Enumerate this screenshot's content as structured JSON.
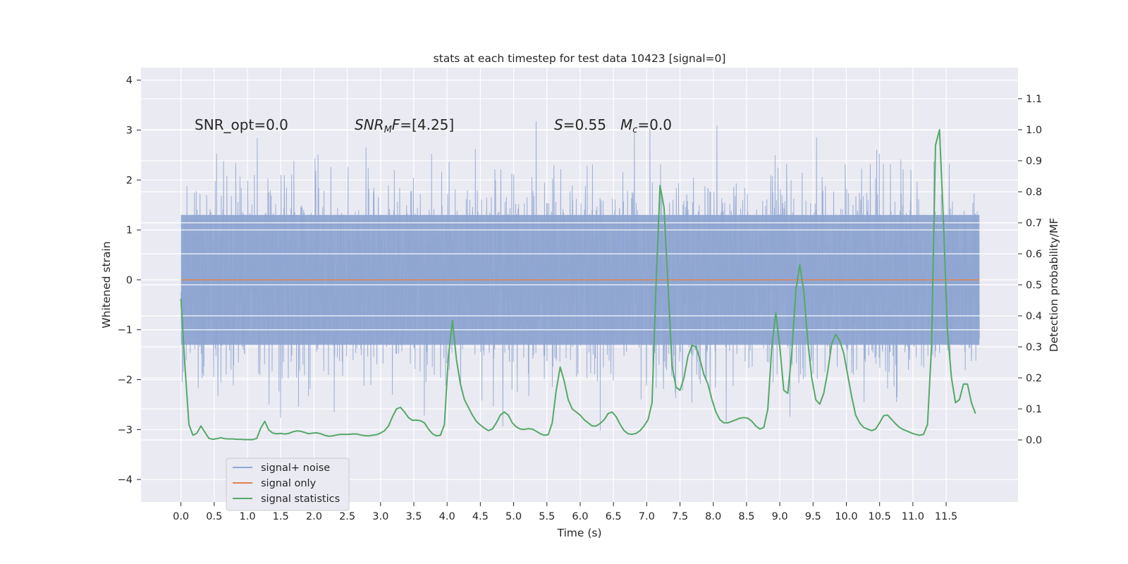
{
  "chart_data": {
    "type": "line",
    "title": "stats at each timestep for test data 10423 [signal=0]",
    "xlabel": "Time (s)",
    "ylabel_left": "Whitened strain",
    "ylabel_right": "Detection probability/MF",
    "xlim": [
      -0.6,
      12.58
    ],
    "ylim_left": [
      -4.45,
      4.25
    ],
    "ylim_right": [
      -0.2,
      1.2
    ],
    "x_ticks": [
      "0.0",
      "0.5",
      "1.0",
      "1.5",
      "2.0",
      "2.5",
      "3.0",
      "3.5",
      "4.0",
      "4.5",
      "5.0",
      "5.5",
      "6.0",
      "6.5",
      "7.0",
      "7.5",
      "8.0",
      "8.5",
      "9.0",
      "9.5",
      "10.0",
      "10.5",
      "11.0",
      "11.5"
    ],
    "y_ticks_left": [
      "4",
      "3",
      "2",
      "1",
      "0",
      "−1",
      "−2",
      "−3",
      "−4"
    ],
    "y_ticks_right": [
      "1.1",
      "1.0",
      "0.9",
      "0.8",
      "0.7",
      "0.6",
      "0.5",
      "0.4",
      "0.3",
      "0.2",
      "0.1",
      "0.0"
    ],
    "grid": true,
    "legend_position": "lower-left",
    "colors": {
      "noise": "#8fa6d1",
      "signal_only": "#dd8452",
      "stats": "#55a868",
      "background": "#eaeaf2"
    },
    "annotations": {
      "snr_opt": "SNR_opt=0.0",
      "snr_mf_label": "SNR",
      "snr_mf_sub": "M",
      "snr_mf_value": "F=[4.25]",
      "s_label": "S",
      "s_value": "=0.55",
      "mc_label": "M",
      "mc_sub": "c",
      "mc_value": "=0.0"
    },
    "series": [
      {
        "name": "signal+ noise",
        "t_start": 0.0,
        "t_end": 12.0,
        "typical_range": [
          -1.3,
          1.3
        ],
        "band_range": [
          -1.75,
          1.75
        ],
        "extreme_range": [
          -4.1,
          3.9
        ]
      },
      {
        "name": "signal only",
        "x": [
          0.0,
          12.0
        ],
        "y": [
          0.0,
          0.0
        ]
      },
      {
        "name": "signal statistics",
        "x": [
          0.0,
          0.06,
          0.12,
          0.18,
          0.24,
          0.3,
          0.36,
          0.42,
          0.48,
          0.54,
          0.6,
          0.66,
          0.72,
          0.78,
          0.84,
          0.9,
          0.96,
          1.02,
          1.08,
          1.14,
          1.2,
          1.26,
          1.32,
          1.38,
          1.44,
          1.5,
          1.56,
          1.62,
          1.68,
          1.74,
          1.8,
          1.86,
          1.92,
          1.98,
          2.04,
          2.1,
          2.16,
          2.22,
          2.28,
          2.34,
          2.4,
          2.46,
          2.52,
          2.58,
          2.64,
          2.7,
          2.76,
          2.82,
          2.88,
          2.94,
          3.0,
          3.06,
          3.12,
          3.18,
          3.24,
          3.3,
          3.36,
          3.42,
          3.48,
          3.54,
          3.6,
          3.66,
          3.72,
          3.78,
          3.84,
          3.9,
          3.96,
          4.02,
          4.08,
          4.14,
          4.2,
          4.26,
          4.32,
          4.38,
          4.44,
          4.5,
          4.56,
          4.62,
          4.68,
          4.74,
          4.8,
          4.86,
          4.92,
          4.98,
          5.04,
          5.1,
          5.16,
          5.22,
          5.28,
          5.34,
          5.4,
          5.46,
          5.52,
          5.58,
          5.64,
          5.7,
          5.76,
          5.82,
          5.88,
          5.94,
          6.0,
          6.06,
          6.12,
          6.18,
          6.24,
          6.3,
          6.36,
          6.42,
          6.48,
          6.54,
          6.6,
          6.66,
          6.72,
          6.78,
          6.84,
          6.9,
          6.96,
          7.02,
          7.08,
          7.14,
          7.2,
          7.26,
          7.32,
          7.38,
          7.44,
          7.5,
          7.56,
          7.62,
          7.68,
          7.74,
          7.8,
          7.86,
          7.92,
          7.98,
          8.04,
          8.1,
          8.16,
          8.22,
          8.28,
          8.34,
          8.4,
          8.46,
          8.52,
          8.58,
          8.64,
          8.7,
          8.76,
          8.82,
          8.88,
          8.94,
          9.0,
          9.06,
          9.12,
          9.18,
          9.24,
          9.3,
          9.36,
          9.42,
          9.48,
          9.54,
          9.6,
          9.66,
          9.72,
          9.78,
          9.84,
          9.9,
          9.96,
          10.02,
          10.08,
          10.14,
          10.2,
          10.26,
          10.32,
          10.38,
          10.44,
          10.5,
          10.56,
          10.62,
          10.68,
          10.74,
          10.8,
          10.86,
          10.92,
          10.98,
          11.04,
          11.1,
          11.16,
          11.22,
          11.28,
          11.34,
          11.4,
          11.46,
          11.52,
          11.58,
          11.64,
          11.7,
          11.76,
          11.82,
          11.88,
          11.94
        ],
        "y": [
          0.455,
          0.24,
          0.05,
          0.015,
          0.022,
          0.045,
          0.025,
          0.005,
          0.002,
          0.004,
          0.007,
          0.004,
          0.003,
          0.003,
          0.002,
          0.002,
          0.001,
          0.001,
          0.001,
          0.005,
          0.038,
          0.06,
          0.032,
          0.022,
          0.02,
          0.021,
          0.019,
          0.021,
          0.026,
          0.029,
          0.028,
          0.024,
          0.02,
          0.022,
          0.023,
          0.02,
          0.015,
          0.012,
          0.013,
          0.016,
          0.018,
          0.018,
          0.018,
          0.019,
          0.019,
          0.016,
          0.014,
          0.013,
          0.015,
          0.017,
          0.022,
          0.03,
          0.045,
          0.075,
          0.1,
          0.105,
          0.09,
          0.072,
          0.063,
          0.064,
          0.062,
          0.055,
          0.035,
          0.02,
          0.013,
          0.015,
          0.05,
          0.27,
          0.385,
          0.26,
          0.18,
          0.13,
          0.105,
          0.08,
          0.06,
          0.048,
          0.038,
          0.03,
          0.035,
          0.055,
          0.08,
          0.09,
          0.08,
          0.055,
          0.042,
          0.035,
          0.034,
          0.036,
          0.035,
          0.028,
          0.02,
          0.015,
          0.017,
          0.055,
          0.16,
          0.235,
          0.19,
          0.13,
          0.1,
          0.09,
          0.08,
          0.065,
          0.055,
          0.045,
          0.045,
          0.053,
          0.065,
          0.085,
          0.09,
          0.075,
          0.05,
          0.03,
          0.02,
          0.018,
          0.021,
          0.03,
          0.045,
          0.065,
          0.12,
          0.5,
          0.82,
          0.75,
          0.5,
          0.24,
          0.17,
          0.16,
          0.2,
          0.27,
          0.305,
          0.3,
          0.26,
          0.21,
          0.18,
          0.13,
          0.09,
          0.065,
          0.055,
          0.055,
          0.06,
          0.065,
          0.07,
          0.072,
          0.07,
          0.06,
          0.045,
          0.035,
          0.04,
          0.1,
          0.3,
          0.41,
          0.3,
          0.16,
          0.15,
          0.28,
          0.48,
          0.565,
          0.48,
          0.32,
          0.2,
          0.13,
          0.115,
          0.15,
          0.22,
          0.31,
          0.34,
          0.32,
          0.28,
          0.21,
          0.14,
          0.08,
          0.055,
          0.04,
          0.035,
          0.03,
          0.035,
          0.055,
          0.078,
          0.08,
          0.066,
          0.052,
          0.04,
          0.033,
          0.028,
          0.022,
          0.018,
          0.015,
          0.018,
          0.05,
          0.3,
          0.95,
          1.0,
          0.7,
          0.35,
          0.2,
          0.12,
          0.13,
          0.18,
          0.18,
          0.12,
          0.085
        ]
      }
    ]
  },
  "legend": {
    "items": [
      "signal+ noise",
      "signal only",
      "signal statistics"
    ]
  }
}
